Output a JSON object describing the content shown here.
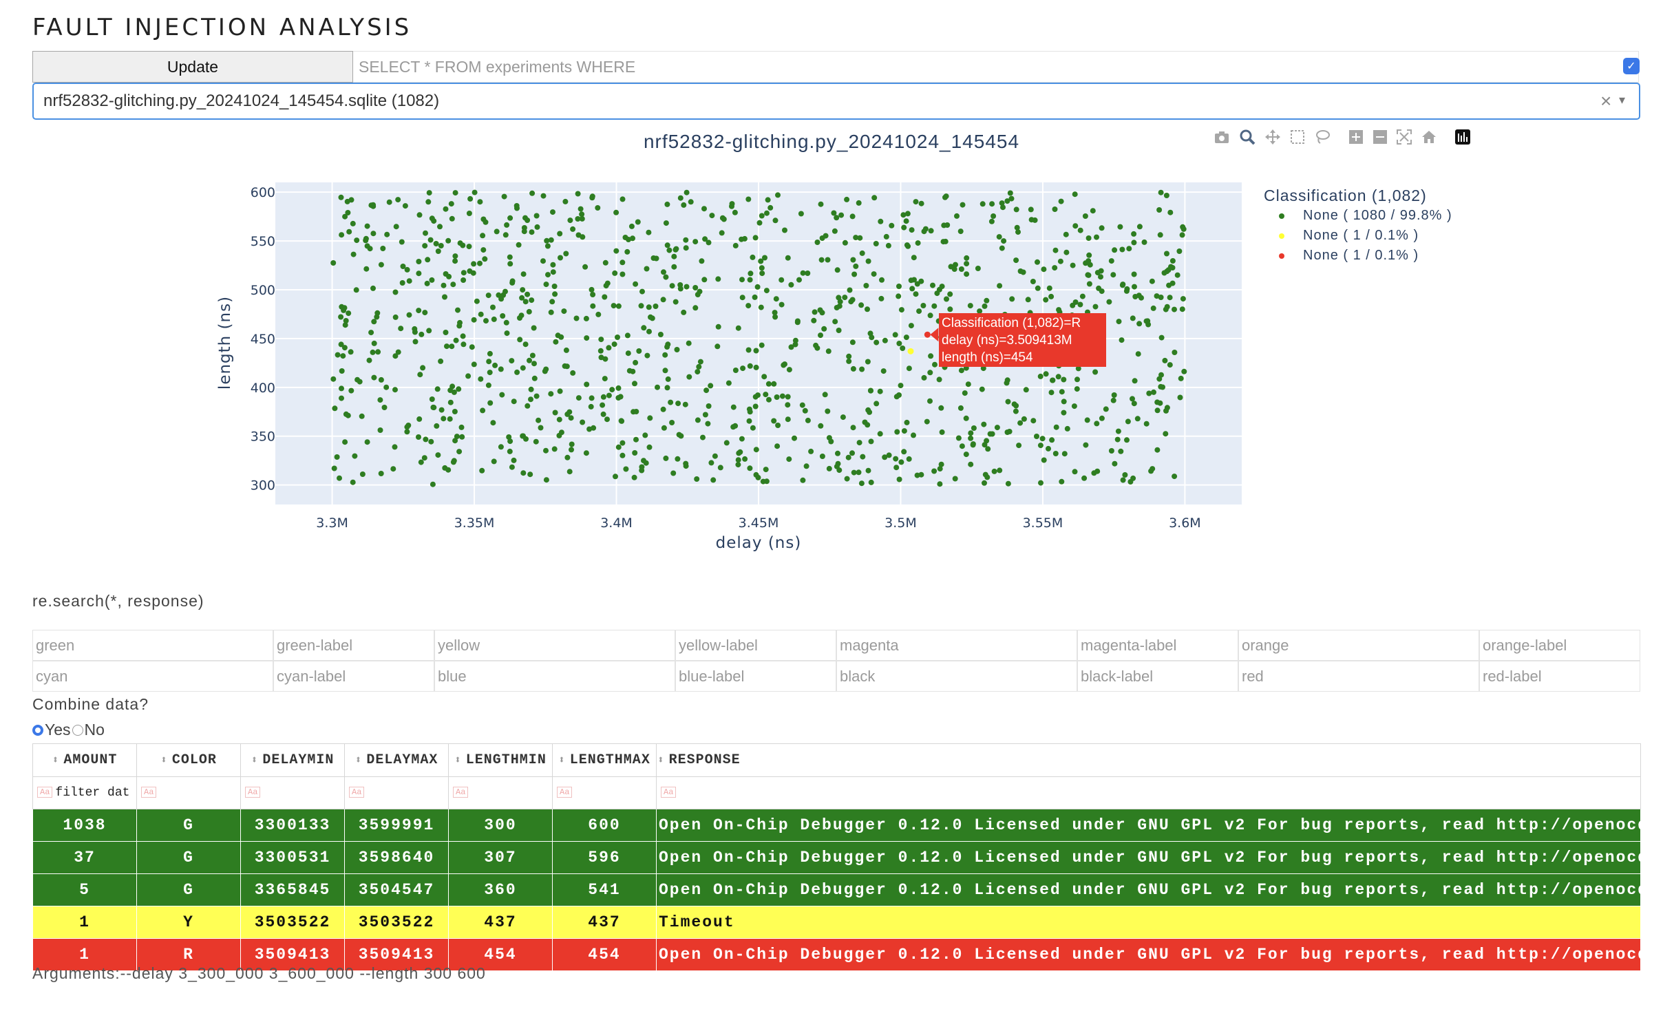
{
  "page_title": "FAULT INJECTION ANALYSIS",
  "toolbar": {
    "update_label": "Update",
    "query_placeholder": "SELECT * FROM experiments WHERE",
    "db_value": "nrf52832-glitching.py_20241024_145454.sqlite (1082)",
    "clear_glyph": "×",
    "caret_glyph": "▾",
    "check_glyph": "✓"
  },
  "modebar_icons": [
    "camera-icon",
    "zoom-icon",
    "pan-icon",
    "box-select-icon",
    "lasso-icon",
    "zoom-in-icon",
    "zoom-out-icon",
    "autoscale-icon",
    "reset-axes-icon",
    "plotly-logo-icon"
  ],
  "chart_data": {
    "type": "scatter",
    "title": "nrf52832-glitching.py_20241024_145454",
    "xlabel": "delay (ns)",
    "ylabel": "length (ns)",
    "xlim": [
      3280000,
      3620000
    ],
    "ylim": [
      280,
      610
    ],
    "x_ticks": [
      "3.3M",
      "3.35M",
      "3.4M",
      "3.45M",
      "3.5M",
      "3.55M",
      "3.6M"
    ],
    "x_tick_values": [
      3300000,
      3350000,
      3400000,
      3450000,
      3500000,
      3550000,
      3600000
    ],
    "y_ticks": [
      "300",
      "350",
      "400",
      "450",
      "500",
      "550",
      "600"
    ],
    "y_tick_values": [
      300,
      350,
      400,
      450,
      500,
      550,
      600
    ],
    "grid": true,
    "legend_position": "right",
    "legend_title": "Classification (1,082)",
    "series": [
      {
        "name": "None ( 1080 / 99.8% )",
        "color": "#2e7d21",
        "count": 1080,
        "x_range": [
          3300133,
          3599991
        ],
        "y_range": [
          300,
          600
        ],
        "distribution": "uniform random"
      },
      {
        "name": "None ( 1 / 0.1% )",
        "color": "#ffff33",
        "x": [
          3503522
        ],
        "y": [
          437
        ]
      },
      {
        "name": "None ( 1 / 0.1% )",
        "color": "#e8382b",
        "x": [
          3509413
        ],
        "y": [
          454
        ]
      }
    ],
    "hover": {
      "lines": [
        "Classification (1,082)=R",
        "delay (ns)=3.509413M",
        "length (ns)=454"
      ]
    }
  },
  "regex_label": "re.search(*, response)",
  "color_labels": [
    [
      "green",
      "green-label",
      "yellow",
      "yellow-label",
      "magenta",
      "magenta-label",
      "orange",
      "orange-label"
    ],
    [
      "cyan",
      "cyan-label",
      "blue",
      "blue-label",
      "black",
      "black-label",
      "red",
      "red-label"
    ]
  ],
  "combine": {
    "label": "Combine data?",
    "yes": "Yes",
    "no": "No",
    "selected": "Yes"
  },
  "table": {
    "columns": [
      "AMOUNT",
      "COLOR",
      "DELAYMIN",
      "DELAYMAX",
      "LENGTHMIN",
      "LENGTHMAX",
      "RESPONSE"
    ],
    "filter_placeholder": "filter dat",
    "filter_tag": "Aa",
    "rows": [
      {
        "amount": "1038",
        "color": "G",
        "delaymin": "3300133",
        "delaymax": "3599991",
        "lengthmin": "300",
        "lengthmax": "600",
        "response": "Open On-Chip Debugger 0.12.0 Licensed under GNU GPL v2 For bug reports, read http://openocd.org/doc/doxygen/bugs.html",
        "row_color": "#2e7d21"
      },
      {
        "amount": "37",
        "color": "G",
        "delaymin": "3300531",
        "delaymax": "3598640",
        "lengthmin": "307",
        "lengthmax": "596",
        "response": "Open On-Chip Debugger 0.12.0 Licensed under GNU GPL v2 For bug reports, read http://openocd.org/doc/doxygen/bugs.html",
        "row_color": "#2e7d21"
      },
      {
        "amount": "5",
        "color": "G",
        "delaymin": "3365845",
        "delaymax": "3504547",
        "lengthmin": "360",
        "lengthmax": "541",
        "response": "Open On-Chip Debugger 0.12.0 Licensed under GNU GPL v2 For bug reports, read http://openocd.org/doc/doxygen/bugs.html",
        "row_color": "#2e7d21"
      },
      {
        "amount": "1",
        "color": "Y",
        "delaymin": "3503522",
        "delaymax": "3503522",
        "lengthmin": "437",
        "lengthmax": "437",
        "response": "Timeout",
        "row_color": "#ffff55"
      },
      {
        "amount": "1",
        "color": "R",
        "delaymin": "3509413",
        "delaymax": "3509413",
        "lengthmin": "454",
        "lengthmax": "454",
        "response": "Open On-Chip Debugger 0.12.0 Licensed under GNU GPL v2 For bug reports, read http://openocd.org/doc/doxygen/bugs.html",
        "row_color": "#e8382b"
      }
    ]
  },
  "arguments": "Arguments:--delay 3_300_000 3_600_000 --length 300 600"
}
